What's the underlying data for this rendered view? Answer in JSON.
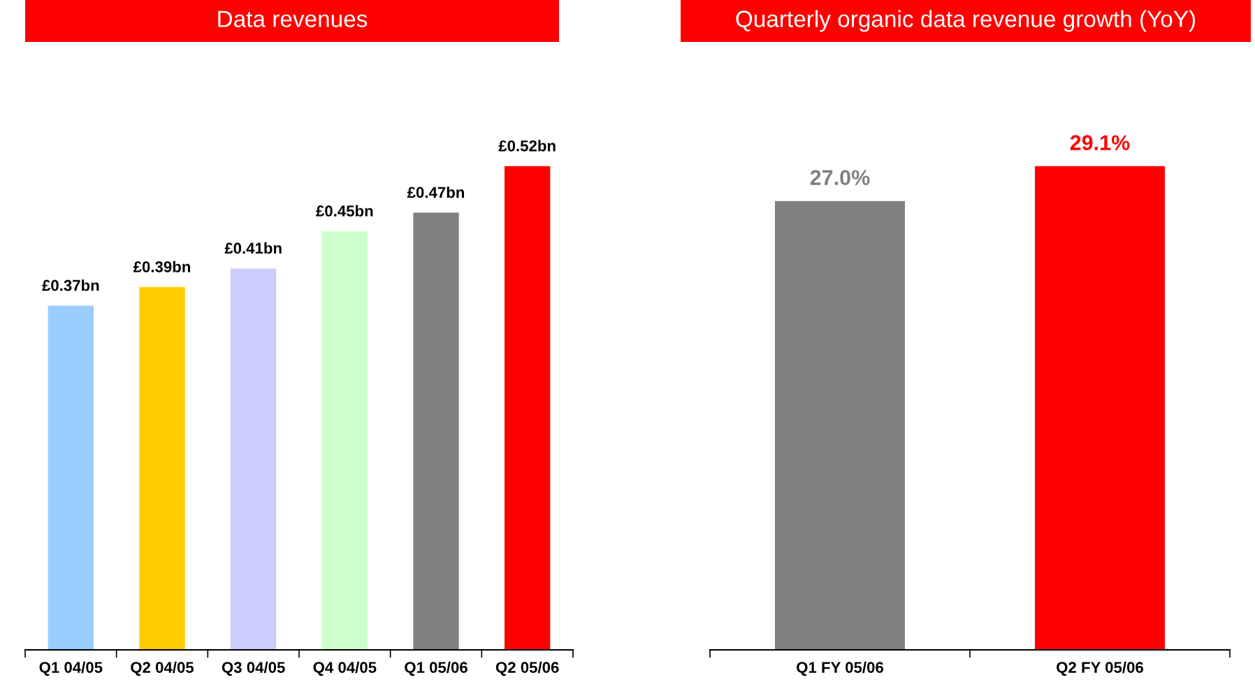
{
  "chart_data": [
    {
      "type": "bar",
      "title": "Data revenues",
      "categories": [
        "Q1 04/05",
        "Q2 04/05",
        "Q3 04/05",
        "Q4 04/05",
        "Q1 05/06",
        "Q2 05/06"
      ],
      "values": [
        0.37,
        0.39,
        0.41,
        0.45,
        0.47,
        0.52
      ],
      "colors": [
        "#99ccff",
        "#ffcc00",
        "#ccccff",
        "#ccffcc",
        "#808080",
        "#ff0000"
      ],
      "value_labels": [
        "£0.37bn",
        "£0.39bn",
        "£0.41bn",
        "£0.45bn",
        "£0.47bn",
        "£0.52bn"
      ],
      "grid": false
    },
    {
      "type": "bar",
      "title": "Quarterly organic data revenue growth (YoY)",
      "categories": [
        "Q1 FY 05/06",
        "Q2 FY 05/06"
      ],
      "values": [
        27.0,
        29.1
      ],
      "colors": [
        "#808080",
        "#ff0000"
      ],
      "value_labels": [
        "27.0%",
        "29.1%"
      ],
      "grid": false
    }
  ]
}
